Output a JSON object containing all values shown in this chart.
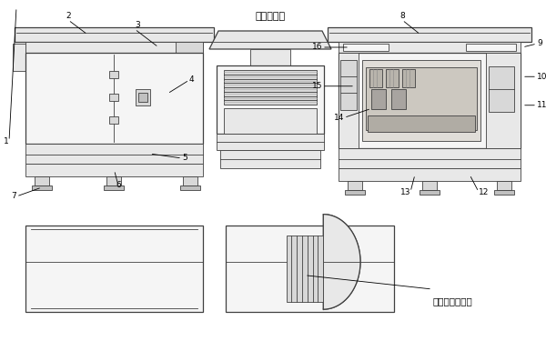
{
  "bg_color": "#ffffff",
  "dc": "#404040",
  "lc": "#606060",
  "fc_light": "#f5f5f5",
  "fc_gray": "#e8e8e8",
  "fc_mid": "#d8d8d8",
  "fc_dark": "#c0c0c0",
  "exhaust_text": "排气百叶窗",
  "intake_text": "顶部进气百叶窗",
  "lw_thin": 0.6,
  "lw_med": 0.9,
  "lw_thick": 1.3,
  "fontsize_label": 6.5
}
